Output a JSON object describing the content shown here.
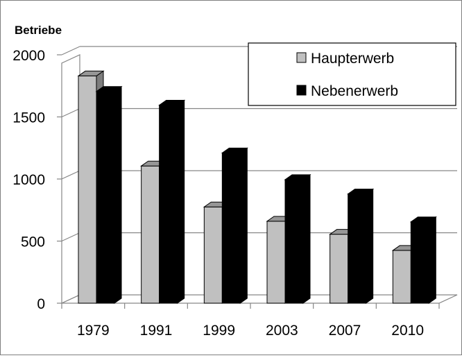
{
  "chart_data": {
    "type": "bar",
    "style": "3d-clustered-column",
    "title": "",
    "xlabel": "",
    "ylabel": "Betriebe",
    "categories": [
      "1979",
      "1991",
      "1999",
      "2003",
      "2007",
      "2010"
    ],
    "series": [
      {
        "name": "Haupterwerb",
        "color": "#c0c0c0",
        "values": [
          1830,
          1105,
          775,
          660,
          555,
          425
        ]
      },
      {
        "name": "Nebenerwerb",
        "color": "#000000",
        "values": [
          1705,
          1595,
          1210,
          995,
          880,
          655
        ]
      }
    ],
    "ylim": [
      0,
      2000
    ],
    "yticks": [
      "0",
      "500",
      "1000",
      "1500",
      "2000"
    ],
    "grid": true,
    "legend_position": "top-right"
  }
}
